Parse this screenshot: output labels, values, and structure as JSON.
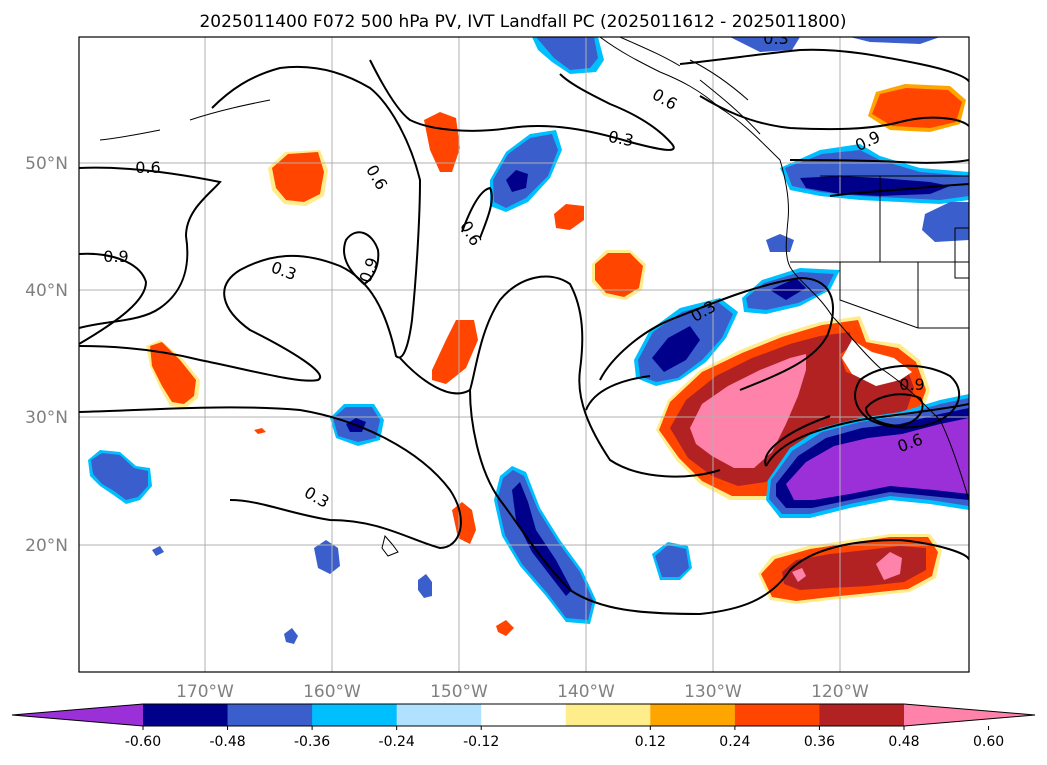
{
  "title": "2025011400 F072 500 hPa PV, IVT Landfall PC (2025011612 - 2025011800)",
  "lat_labels": [
    "50°N",
    "40°N",
    "30°N",
    "20°N"
  ],
  "lon_labels": [
    "170°W",
    "160°W",
    "150°W",
    "140°W",
    "130°W",
    "120°W"
  ],
  "contour_levels": [
    {
      "text": "0.6"
    },
    {
      "text": "0.9"
    },
    {
      "text": "0.3"
    },
    {
      "text": "0.6"
    },
    {
      "text": "0.9"
    },
    {
      "text": "0.6"
    },
    {
      "text": "0.3"
    },
    {
      "text": "0.6"
    },
    {
      "text": "0.3"
    },
    {
      "text": "0.9"
    },
    {
      "text": "0.3"
    },
    {
      "text": "0.9"
    },
    {
      "text": "0.6"
    },
    {
      "text": "0.3"
    }
  ],
  "colorbar": {
    "ticks": [
      "-0.60",
      "-0.48",
      "-0.36",
      "-0.24",
      "-0.12",
      "0.12",
      "0.24",
      "0.36",
      "0.48",
      "0.60"
    ],
    "colors": [
      "#9b30d9",
      "#00008b",
      "#3a5fcd",
      "#00bfff",
      "#b0e2ff",
      "#ffffff",
      "#ffec8b",
      "#ffa500",
      "#ff4500",
      "#b22222",
      "#ff82ab"
    ]
  },
  "map_extent": {
    "lon_min": -180,
    "lon_max": -110,
    "lat_min": 10,
    "lat_max": 60
  }
}
